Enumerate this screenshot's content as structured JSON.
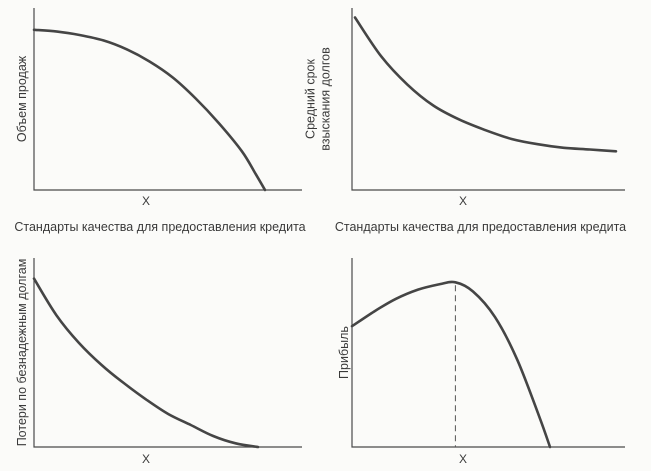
{
  "chart_data": [
    {
      "type": "line",
      "ylabel": "Объем продаж",
      "xlabel": "Стандарты качества для предоставления кредита",
      "x_tick": "X",
      "xlim": [
        0,
        1
      ],
      "ylim": [
        0,
        1
      ],
      "series": [
        {
          "x": [
            0,
            0.1,
            0.2,
            0.3,
            0.4,
            0.5,
            0.6,
            0.7,
            0.8,
            0.9,
            0.96,
            1.0
          ],
          "y": [
            0.91,
            0.9,
            0.88,
            0.85,
            0.8,
            0.73,
            0.64,
            0.52,
            0.38,
            0.22,
            0.09,
            0.0
          ]
        }
      ]
    },
    {
      "type": "line",
      "ylabel": [
        "Средний срок",
        "взыскания долгов"
      ],
      "xlabel": "Стандарты качества для предоставления кредита",
      "x_tick": "X",
      "xlim": [
        0,
        1
      ],
      "ylim": [
        0,
        1
      ],
      "series": [
        {
          "x": [
            0,
            0.1,
            0.2,
            0.3,
            0.4,
            0.5,
            0.6,
            0.7,
            0.8,
            0.9,
            1.0
          ],
          "y": [
            0.98,
            0.76,
            0.6,
            0.48,
            0.4,
            0.34,
            0.29,
            0.26,
            0.24,
            0.23,
            0.22
          ]
        }
      ]
    },
    {
      "type": "line",
      "ylabel": "Потери по безнадежным долгам",
      "x_tick": "X",
      "xlim": [
        0,
        1
      ],
      "ylim": [
        0,
        1
      ],
      "series": [
        {
          "x": [
            0,
            0.1,
            0.2,
            0.3,
            0.4,
            0.5,
            0.6,
            0.7,
            0.8,
            0.9,
            1.0
          ],
          "y": [
            0.92,
            0.72,
            0.57,
            0.45,
            0.35,
            0.26,
            0.18,
            0.12,
            0.06,
            0.02,
            0.0
          ]
        }
      ]
    },
    {
      "type": "line",
      "ylabel": "Прибыль",
      "x_tick": "X",
      "xlim": [
        0,
        1
      ],
      "ylim": [
        0,
        1
      ],
      "peak_x": 0.47,
      "series": [
        {
          "x": [
            0,
            0.1,
            0.2,
            0.3,
            0.4,
            0.47,
            0.55,
            0.65,
            0.75,
            0.85,
            0.9
          ],
          "y": [
            0.66,
            0.74,
            0.81,
            0.86,
            0.89,
            0.9,
            0.85,
            0.71,
            0.48,
            0.17,
            0.0
          ]
        }
      ]
    }
  ]
}
